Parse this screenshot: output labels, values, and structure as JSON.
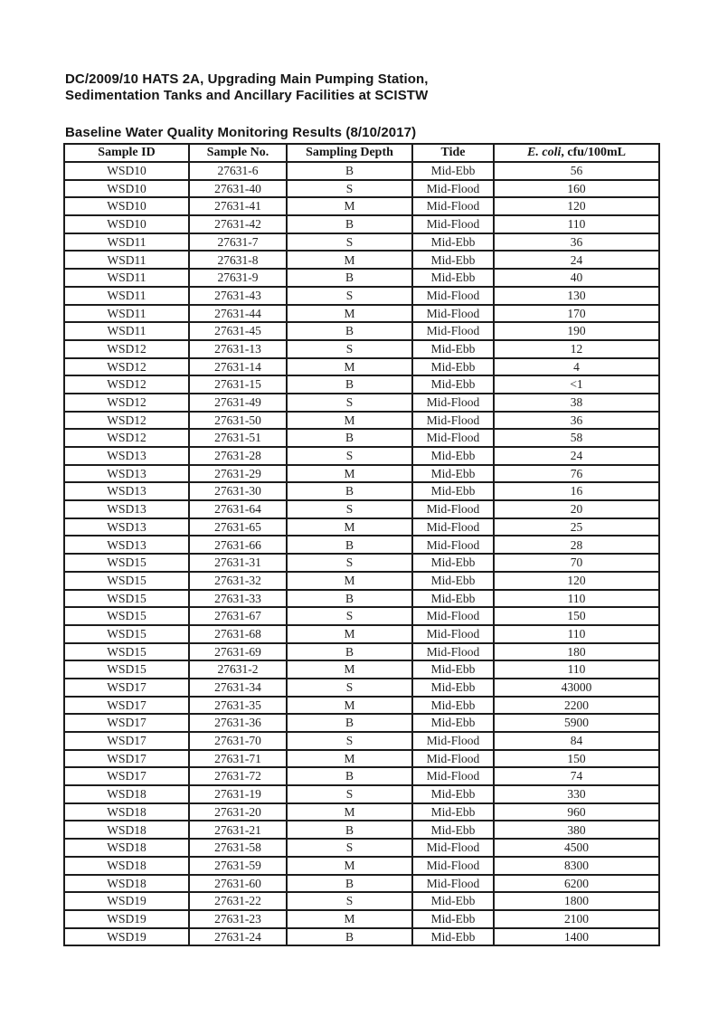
{
  "header": {
    "title_line1": "DC/2009/10 HATS 2A, Upgrading Main Pumping Station,",
    "title_line2": "Sedimentation Tanks and Ancillary Facilities at SCISTW",
    "table_caption": "Baseline Water Quality Monitoring Results (8/10/2017)"
  },
  "table": {
    "columns": [
      "Sample ID",
      "Sample No.",
      "Sampling Depth",
      "Tide"
    ],
    "ecoli_header": {
      "italic": "E. coli",
      "rest": ", cfu/100mL"
    },
    "rows": [
      [
        "WSD10",
        "27631-6",
        "B",
        "Mid-Ebb",
        "56"
      ],
      [
        "WSD10",
        "27631-40",
        "S",
        "Mid-Flood",
        "160"
      ],
      [
        "WSD10",
        "27631-41",
        "M",
        "Mid-Flood",
        "120"
      ],
      [
        "WSD10",
        "27631-42",
        "B",
        "Mid-Flood",
        "110"
      ],
      [
        "WSD11",
        "27631-7",
        "S",
        "Mid-Ebb",
        "36"
      ],
      [
        "WSD11",
        "27631-8",
        "M",
        "Mid-Ebb",
        "24"
      ],
      [
        "WSD11",
        "27631-9",
        "B",
        "Mid-Ebb",
        "40"
      ],
      [
        "WSD11",
        "27631-43",
        "S",
        "Mid-Flood",
        "130"
      ],
      [
        "WSD11",
        "27631-44",
        "M",
        "Mid-Flood",
        "170"
      ],
      [
        "WSD11",
        "27631-45",
        "B",
        "Mid-Flood",
        "190"
      ],
      [
        "WSD12",
        "27631-13",
        "S",
        "Mid-Ebb",
        "12"
      ],
      [
        "WSD12",
        "27631-14",
        "M",
        "Mid-Ebb",
        "4"
      ],
      [
        "WSD12",
        "27631-15",
        "B",
        "Mid-Ebb",
        "<1"
      ],
      [
        "WSD12",
        "27631-49",
        "S",
        "Mid-Flood",
        "38"
      ],
      [
        "WSD12",
        "27631-50",
        "M",
        "Mid-Flood",
        "36"
      ],
      [
        "WSD12",
        "27631-51",
        "B",
        "Mid-Flood",
        "58"
      ],
      [
        "WSD13",
        "27631-28",
        "S",
        "Mid-Ebb",
        "24"
      ],
      [
        "WSD13",
        "27631-29",
        "M",
        "Mid-Ebb",
        "76"
      ],
      [
        "WSD13",
        "27631-30",
        "B",
        "Mid-Ebb",
        "16"
      ],
      [
        "WSD13",
        "27631-64",
        "S",
        "Mid-Flood",
        "20"
      ],
      [
        "WSD13",
        "27631-65",
        "M",
        "Mid-Flood",
        "25"
      ],
      [
        "WSD13",
        "27631-66",
        "B",
        "Mid-Flood",
        "28"
      ],
      [
        "WSD15",
        "27631-31",
        "S",
        "Mid-Ebb",
        "70"
      ],
      [
        "WSD15",
        "27631-32",
        "M",
        "Mid-Ebb",
        "120"
      ],
      [
        "WSD15",
        "27631-33",
        "B",
        "Mid-Ebb",
        "110"
      ],
      [
        "WSD15",
        "27631-67",
        "S",
        "Mid-Flood",
        "150"
      ],
      [
        "WSD15",
        "27631-68",
        "M",
        "Mid-Flood",
        "110"
      ],
      [
        "WSD15",
        "27631-69",
        "B",
        "Mid-Flood",
        "180"
      ],
      [
        "WSD15",
        "27631-2",
        "M",
        "Mid-Ebb",
        "110"
      ],
      [
        "WSD17",
        "27631-34",
        "S",
        "Mid-Ebb",
        "43000"
      ],
      [
        "WSD17",
        "27631-35",
        "M",
        "Mid-Ebb",
        "2200"
      ],
      [
        "WSD17",
        "27631-36",
        "B",
        "Mid-Ebb",
        "5900"
      ],
      [
        "WSD17",
        "27631-70",
        "S",
        "Mid-Flood",
        "84"
      ],
      [
        "WSD17",
        "27631-71",
        "M",
        "Mid-Flood",
        "150"
      ],
      [
        "WSD17",
        "27631-72",
        "B",
        "Mid-Flood",
        "74"
      ],
      [
        "WSD18",
        "27631-19",
        "S",
        "Mid-Ebb",
        "330"
      ],
      [
        "WSD18",
        "27631-20",
        "M",
        "Mid-Ebb",
        "960"
      ],
      [
        "WSD18",
        "27631-21",
        "B",
        "Mid-Ebb",
        "380"
      ],
      [
        "WSD18",
        "27631-58",
        "S",
        "Mid-Flood",
        "4500"
      ],
      [
        "WSD18",
        "27631-59",
        "M",
        "Mid-Flood",
        "8300"
      ],
      [
        "WSD18",
        "27631-60",
        "B",
        "Mid-Flood",
        "6200"
      ],
      [
        "WSD19",
        "27631-22",
        "S",
        "Mid-Ebb",
        "1800"
      ],
      [
        "WSD19",
        "27631-23",
        "M",
        "Mid-Ebb",
        "2100"
      ],
      [
        "WSD19",
        "27631-24",
        "B",
        "Mid-Ebb",
        "1400"
      ]
    ],
    "cell_names": [
      "cell-sample-id",
      "cell-sample-no",
      "cell-sampling-depth",
      "cell-tide",
      "cell-ecoli-value"
    ]
  }
}
